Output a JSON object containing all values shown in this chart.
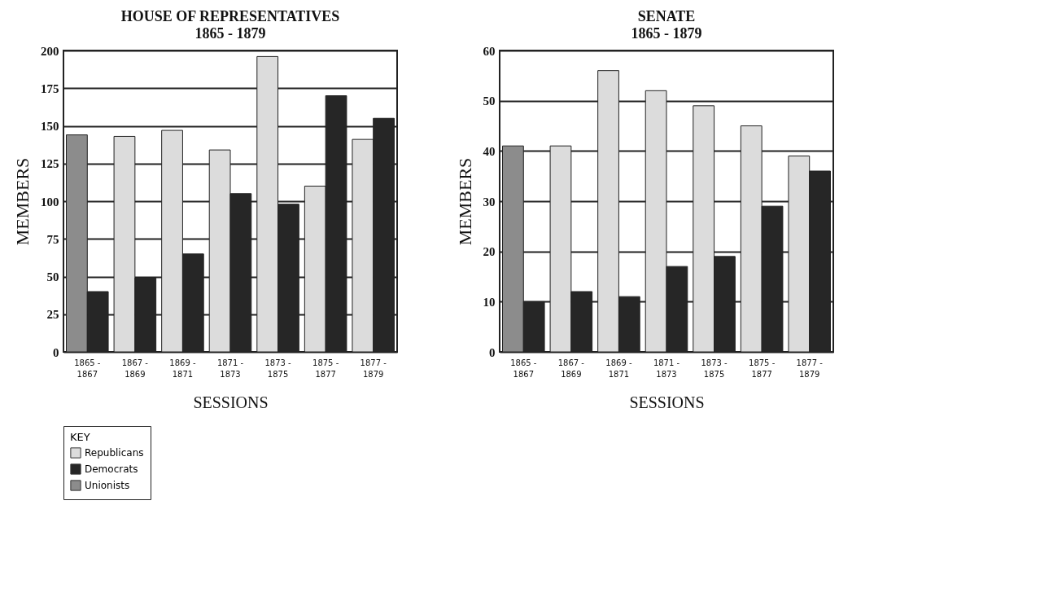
{
  "chart_data": [
    {
      "type": "bar",
      "title": "HOUSE OF REPRESENTATIVES",
      "subtitle": "1865 - 1879",
      "xlabel": "SESSIONS",
      "ylabel": "MEMBERS",
      "legend_title": "KEY",
      "categories": [
        "1865 - 1867",
        "1867 - 1869",
        "1869 - 1871",
        "1871 - 1873",
        "1873 - 1875",
        "1875 - 1877",
        "1877 - 1879"
      ],
      "series": [
        {
          "name": "Republicans",
          "color": "#dcdcdc",
          "values": [
            null,
            143,
            147,
            134,
            196,
            110,
            141
          ]
        },
        {
          "name": "Democrats",
          "color": "#262626",
          "values": [
            40,
            49,
            65,
            105,
            98,
            170,
            155
          ]
        },
        {
          "name": "Unionists",
          "color": "#8c8c8c",
          "values": [
            144,
            null,
            null,
            null,
            null,
            null,
            null
          ]
        }
      ],
      "ylim": [
        0,
        200
      ],
      "yticks": [
        0,
        25,
        50,
        75,
        100,
        125,
        150,
        175,
        200
      ],
      "grid": "y",
      "legend": "bottom left"
    },
    {
      "type": "bar",
      "title": "SENATE",
      "subtitle": "1865 - 1879",
      "xlabel": "SESSIONS",
      "ylabel": "MEMBERS",
      "categories": [
        "1865 - 1867",
        "1867 - 1869",
        "1869 - 1871",
        "1871 - 1873",
        "1873 - 1875",
        "1875 - 1877",
        "1877 - 1879"
      ],
      "series": [
        {
          "name": "Republicans",
          "color": "#dcdcdc",
          "values": [
            null,
            41,
            56,
            52,
            49,
            45,
            39
          ]
        },
        {
          "name": "Democrats",
          "color": "#262626",
          "values": [
            10,
            12,
            11,
            17,
            19,
            29,
            36
          ]
        },
        {
          "name": "Unionists",
          "color": "#8c8c8c",
          "values": [
            41,
            null,
            null,
            null,
            null,
            null,
            null
          ]
        }
      ],
      "ylim": [
        0,
        60
      ],
      "yticks": [
        0,
        10,
        20,
        30,
        40,
        50,
        60
      ],
      "grid": "y"
    }
  ]
}
